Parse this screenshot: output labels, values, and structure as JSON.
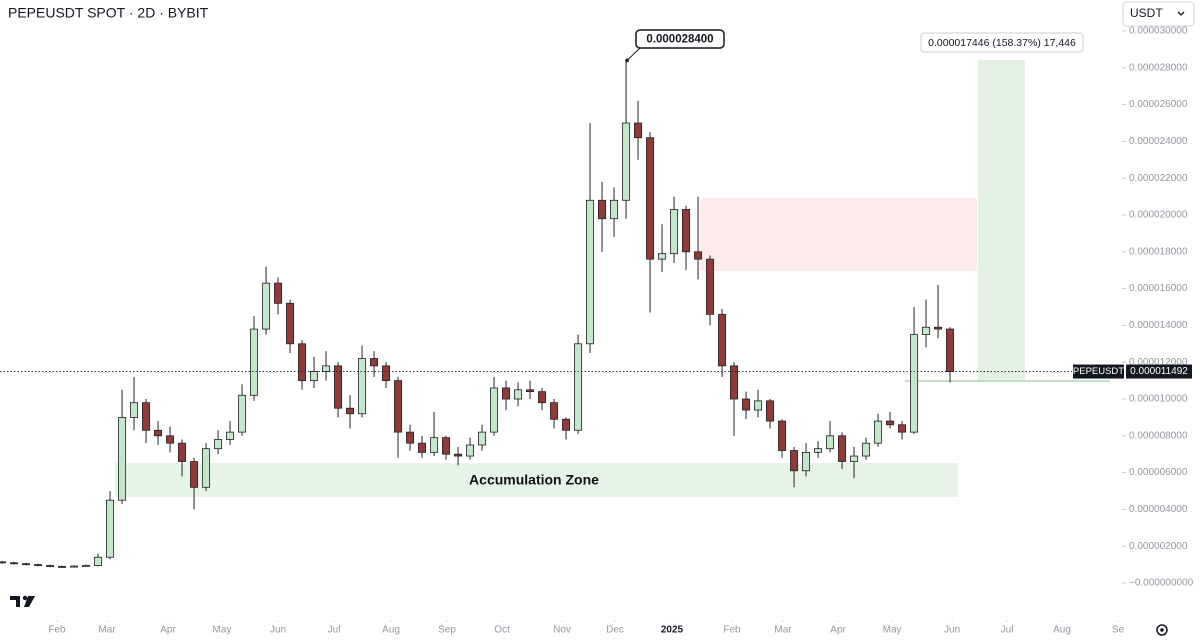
{
  "chart_data": {
    "type": "candlestick",
    "title": "PEPEUSDT SPOT · 2D · BYBIT",
    "symbol": "PEPEUSDT",
    "currency": "USDT",
    "up_color": "#c5e6cb",
    "down_color": "#8e3b3b",
    "wick_color": "#222222",
    "last_price": {
      "value": 1.1492e-05,
      "label": "0.000011492"
    },
    "peak": {
      "value": 2.84e-05,
      "label": "0.000028400"
    },
    "measure": "0.000017446 (158.37%) 17,446",
    "zone_label": "Accumulation Zone",
    "ylim": [
      0,
      3e-05
    ],
    "yticks": [
      {
        "value": 3e-05,
        "label": "0.000030000"
      },
      {
        "value": 2.8e-05,
        "label": "0.000028000"
      },
      {
        "value": 2.6e-05,
        "label": "0.000026000"
      },
      {
        "value": 2.4e-05,
        "label": "0.000024000"
      },
      {
        "value": 2.2e-05,
        "label": "0.000022000"
      },
      {
        "value": 2e-05,
        "label": "0.000020000"
      },
      {
        "value": 1.8e-05,
        "label": "0.000018000"
      },
      {
        "value": 1.6e-05,
        "label": "0.000016000"
      },
      {
        "value": 1.4e-05,
        "label": "0.000014000"
      },
      {
        "value": 1.2e-05,
        "label": "0.000012000"
      },
      {
        "value": 1e-05,
        "label": "0.000010000"
      },
      {
        "value": 8e-06,
        "label": "0.000008000"
      },
      {
        "value": 6e-06,
        "label": "0.000006000"
      },
      {
        "value": 4e-06,
        "label": "0.000004000"
      },
      {
        "value": 2e-06,
        "label": "0.000002000"
      },
      {
        "value": 0,
        "label": "−0.000000000"
      }
    ],
    "xlim": [
      -0.17,
      93.33
    ],
    "xticks": [
      {
        "value": 4.58,
        "label": "Feb"
      },
      {
        "value": 8.75,
        "label": "Mar"
      },
      {
        "value": 13.83,
        "label": "Apr"
      },
      {
        "value": 18.33,
        "label": "May"
      },
      {
        "value": 23,
        "label": "Jun"
      },
      {
        "value": 27.67,
        "label": "Jul"
      },
      {
        "value": 32.42,
        "label": "Aug"
      },
      {
        "value": 37.08,
        "label": "Sep"
      },
      {
        "value": 41.67,
        "label": "Oct"
      },
      {
        "value": 46.67,
        "label": "Nov"
      },
      {
        "value": 51.08,
        "label": "Dec"
      },
      {
        "value": 55.83,
        "label": "2025"
      },
      {
        "value": 60.83,
        "label": "Feb"
      },
      {
        "value": 65.08,
        "label": "Mar"
      },
      {
        "value": 69.67,
        "label": "Apr"
      },
      {
        "value": 74.17,
        "label": "May"
      },
      {
        "value": 79.17,
        "label": "Jun"
      },
      {
        "value": 83.75,
        "label": "Jul"
      },
      {
        "value": 88.33,
        "label": "Aug"
      },
      {
        "value": 93,
        "label": "Se"
      }
    ],
    "open": [
      1.15e-06,
      1.1e-06,
      1.05e-06,
      1e-06,
      9.5e-07,
      9e-07,
      8.8e-07,
      9.2e-07,
      9.5e-07,
      1.4e-06,
      4.5e-06,
      9e-06,
      9.8e-06,
      8.3e-06,
      8e-06,
      7.6e-06,
      6.6e-06,
      5.2e-06,
      7.3e-06,
      7.8e-06,
      8.2e-06,
      1.02e-05,
      1.38e-05,
      1.63e-05,
      1.52e-05,
      1.3e-05,
      1.1e-05,
      1.15e-05,
      1.18e-05,
      9.5e-06,
      9.2e-06,
      1.22e-05,
      1.18e-05,
      1.1e-05,
      8.2e-06,
      7.6e-06,
      7.1e-06,
      7.9e-06,
      7e-06,
      6.9e-06,
      7.5e-06,
      8.2e-06,
      1.06e-05,
      1e-05,
      1.05e-05,
      1.04e-05,
      9.8e-06,
      8.9e-06,
      8.3e-06,
      1.3e-05,
      2.08e-05,
      1.98e-05,
      2.08e-05,
      2.5e-05,
      2.42e-05,
      1.76e-05,
      1.79e-05,
      2.03e-05,
      1.8e-05,
      1.76e-05,
      1.46e-05,
      1.18e-05,
      1e-05,
      9.4e-06,
      9.9e-06,
      8.8e-06,
      7.2e-06,
      6.1e-06,
      7.1e-06,
      7.3e-06,
      8e-06,
      6.6e-06,
      6.9e-06,
      7.6e-06,
      8.8e-06,
      8.6e-06,
      8.2e-06,
      1.35e-05,
      1.39e-05,
      1.38e-05
    ],
    "high": [
      1.2e-06,
      1.15e-06,
      1.1e-06,
      1.05e-06,
      1e-06,
      9.5e-07,
      9.7e-07,
      1e-06,
      1.6e-06,
      5e-06,
      1.05e-05,
      1.12e-05,
      1e-05,
      8.8e-06,
      8.5e-06,
      7.8e-06,
      6.8e-06,
      7.6e-06,
      8.3e-06,
      8.8e-06,
      1.08e-05,
      1.45e-05,
      1.72e-05,
      1.66e-05,
      1.54e-05,
      1.32e-05,
      1.23e-05,
      1.26e-05,
      1.2e-05,
      1.02e-05,
      1.29e-05,
      1.26e-05,
      1.2e-05,
      1.12e-05,
      8.6e-06,
      8e-06,
      9.3e-06,
      8e-06,
      7.4e-06,
      7.9e-06,
      8.6e-06,
      1.12e-05,
      1.1e-05,
      1.09e-05,
      1.1e-05,
      1.06e-05,
      1e-05,
      9e-06,
      1.35e-05,
      2.5e-05,
      2.18e-05,
      2.15e-05,
      2.84e-05,
      2.62e-05,
      2.45e-05,
      1.95e-05,
      2.1e-05,
      2.05e-05,
      2.1e-05,
      1.78e-05,
      1.49e-05,
      1.2e-05,
      1.04e-05,
      1.05e-05,
      1e-05,
      8.9e-06,
      7.4e-06,
      7.6e-06,
      7.7e-06,
      8.8e-06,
      8.2e-06,
      7.4e-06,
      7.9e-06,
      9.2e-06,
      9.3e-06,
      8.8e-06,
      1.5e-05,
      1.54e-05,
      1.62e-05,
      1.39e-05
    ],
    "low": [
      1.05e-06,
      1e-06,
      9.5e-07,
      9e-07,
      8.6e-07,
      8.4e-07,
      8.6e-07,
      9e-07,
      9e-07,
      1.3e-06,
      4.3e-06,
      8.3e-06,
      7.6e-06,
      7.5e-06,
      7.1e-06,
      5.8e-06,
      4e-06,
      5e-06,
      7e-06,
      7.5e-06,
      8e-06,
      9.9e-06,
      1.35e-05,
      1.46e-05,
      1.25e-05,
      1.05e-05,
      1.06e-05,
      1.1e-05,
      9e-06,
      8.4e-06,
      9e-06,
      1.12e-05,
      1.06e-05,
      6.8e-06,
      7.2e-06,
      6.8e-06,
      6.9e-06,
      6.7e-06,
      6.4e-06,
      6.7e-06,
      7.2e-06,
      8e-06,
      9.4e-06,
      9.6e-06,
      1e-05,
      9.4e-06,
      8.4e-06,
      7.8e-06,
      8.1e-06,
      1.25e-05,
      1.8e-05,
      1.88e-05,
      1.98e-05,
      2.3e-05,
      1.47e-05,
      1.69e-05,
      1.74e-05,
      1.7e-05,
      1.65e-05,
      1.4e-05,
      1.12e-05,
      8e-06,
      8.9e-06,
      9e-06,
      8.4e-06,
      6.8e-06,
      5.2e-06,
      5.8e-06,
      6.8e-06,
      7.1e-06,
      6.2e-06,
      5.7e-06,
      6.7e-06,
      7.4e-06,
      8.4e-06,
      7.8e-06,
      8.1e-06,
      1.28e-05,
      1.33e-05,
      1.09e-05
    ],
    "close": [
      1.1e-06,
      1.05e-06,
      1e-06,
      9.5e-07,
      9e-07,
      8.8e-07,
      9.2e-07,
      9.5e-07,
      1.4e-06,
      4.5e-06,
      9e-06,
      9.8e-06,
      8.3e-06,
      8e-06,
      7.6e-06,
      6.6e-06,
      5.2e-06,
      7.3e-06,
      7.8e-06,
      8.2e-06,
      1.02e-05,
      1.38e-05,
      1.63e-05,
      1.52e-05,
      1.3e-05,
      1.1e-05,
      1.15e-05,
      1.18e-05,
      9.5e-06,
      9.2e-06,
      1.22e-05,
      1.18e-05,
      1.1e-05,
      8.2e-06,
      7.6e-06,
      7.1e-06,
      7.9e-06,
      7e-06,
      6.9e-06,
      7.5e-06,
      8.2e-06,
      1.06e-05,
      1e-05,
      1.05e-05,
      1.04e-05,
      9.8e-06,
      8.9e-06,
      8.3e-06,
      1.3e-05,
      2.08e-05,
      1.98e-05,
      2.08e-05,
      2.5e-05,
      2.42e-05,
      1.76e-05,
      1.79e-05,
      2.03e-05,
      1.8e-05,
      1.76e-05,
      1.46e-05,
      1.18e-05,
      1e-05,
      9.4e-06,
      9.9e-06,
      8.8e-06,
      7.2e-06,
      6.1e-06,
      7.1e-06,
      7.3e-06,
      8e-06,
      6.6e-06,
      6.9e-06,
      7.6e-06,
      8.8e-06,
      8.6e-06,
      8.2e-06,
      1.35e-05,
      1.39e-05,
      1.38e-05,
      1.1492e-05
    ]
  }
}
